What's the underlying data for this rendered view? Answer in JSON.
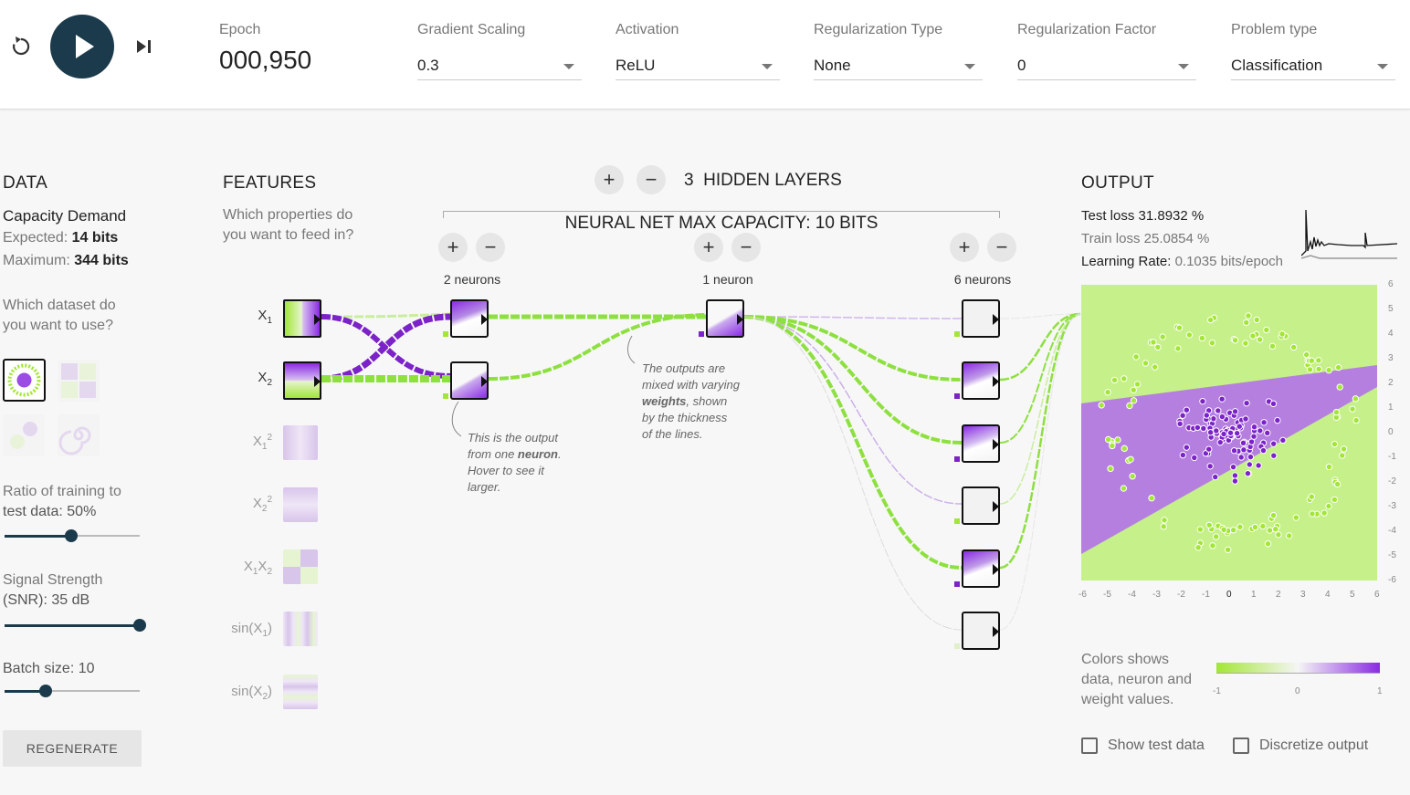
{
  "toolbar": {
    "epoch_label": "Epoch",
    "epoch_value": "000,950",
    "controls": [
      {
        "label": "Gradient Scaling",
        "value": "0.3"
      },
      {
        "label": "Activation",
        "value": "ReLU"
      },
      {
        "label": "Regularization Type",
        "value": "None"
      },
      {
        "label": "Regularization Factor",
        "value": "0"
      },
      {
        "label": "Problem type",
        "value": "Classification"
      }
    ]
  },
  "data_panel": {
    "title": "DATA",
    "capacity_title": "Capacity Demand",
    "expected_label": "Expected:",
    "expected_value": "14 bits",
    "maximum_label": "Maximum:",
    "maximum_value": "344 bits",
    "dataset_question_1": "Which dataset do",
    "dataset_question_2": "you want to use?",
    "ratio_label_1": "Ratio of training to",
    "ratio_label_2": "test data:  50%",
    "ratio_value": 0.5,
    "snr_label_1": "Signal Strength",
    "snr_label_2": "(SNR):  35 dB",
    "snr_value": 1.0,
    "batch_label": "Batch size:  10",
    "batch_value": 0.3,
    "regenerate": "REGENERATE"
  },
  "features": {
    "title": "FEATURES",
    "desc_1": "Which properties do",
    "desc_2": "you want to feed in?",
    "items": [
      {
        "base": "X",
        "sub": "1",
        "sup": ""
      },
      {
        "base": "X",
        "sub": "2",
        "sup": ""
      },
      {
        "base": "X",
        "sub": "1",
        "sup": "2"
      },
      {
        "base": "X",
        "sub": "2",
        "sup": "2"
      },
      {
        "base": "X",
        "sub": "1",
        "sup": "",
        "tail": "X",
        "tail_sub": "2"
      },
      {
        "base": "sin(X",
        "sub": "1",
        "sup": "",
        "close": ")"
      },
      {
        "base": "sin(X",
        "sub": "2",
        "sup": "",
        "close": ")"
      }
    ]
  },
  "network": {
    "layer_count": "3",
    "layers_label": "HIDDEN LAYERS",
    "capacity_label": "NEURAL NET MAX CAPACITY:  10 BITS",
    "layers": [
      {
        "neurons_label": "2 neurons"
      },
      {
        "neurons_label": "1 neuron"
      },
      {
        "neurons_label": "6 neurons"
      }
    ],
    "note_neuron_1": "This is the output",
    "note_neuron_2": "from one ",
    "note_neuron_bold": "neuron",
    "note_neuron_3": "Hover to see it",
    "note_neuron_4": "larger.",
    "note_weights_1": "The outputs are",
    "note_weights_2": "mixed with varying",
    "note_weights_bold": "weights",
    "note_weights_3": ", shown",
    "note_weights_4": "by the thickness",
    "note_weights_5": "of the lines."
  },
  "output": {
    "title": "OUTPUT",
    "test_loss": "Test loss 31.8932 %",
    "train_loss": "Train loss 25.0854 %",
    "lr_label": "Learning Rate: ",
    "lr_value": "0.1035 bits/epoch",
    "x_ticks": [
      "-6",
      "-5",
      "-4",
      "-3",
      "-2",
      "-1",
      "0",
      "1",
      "2",
      "3",
      "4",
      "5",
      "6"
    ],
    "y_ticks": [
      "6",
      "5",
      "4",
      "3",
      "2",
      "1",
      "0",
      "-1",
      "-2",
      "-3",
      "-4",
      "-5",
      "-6"
    ],
    "legend_text_1": "Colors shows",
    "legend_text_2": "data, neuron and",
    "legend_text_3": "weight values.",
    "legend_ticks": [
      "-1",
      "0",
      "1"
    ],
    "show_test": "Show test data",
    "discretize": "Discretize output"
  },
  "colors": {
    "positive": "#8a2be2",
    "negative": "#a3e635",
    "accent": "#1b3a4b"
  }
}
